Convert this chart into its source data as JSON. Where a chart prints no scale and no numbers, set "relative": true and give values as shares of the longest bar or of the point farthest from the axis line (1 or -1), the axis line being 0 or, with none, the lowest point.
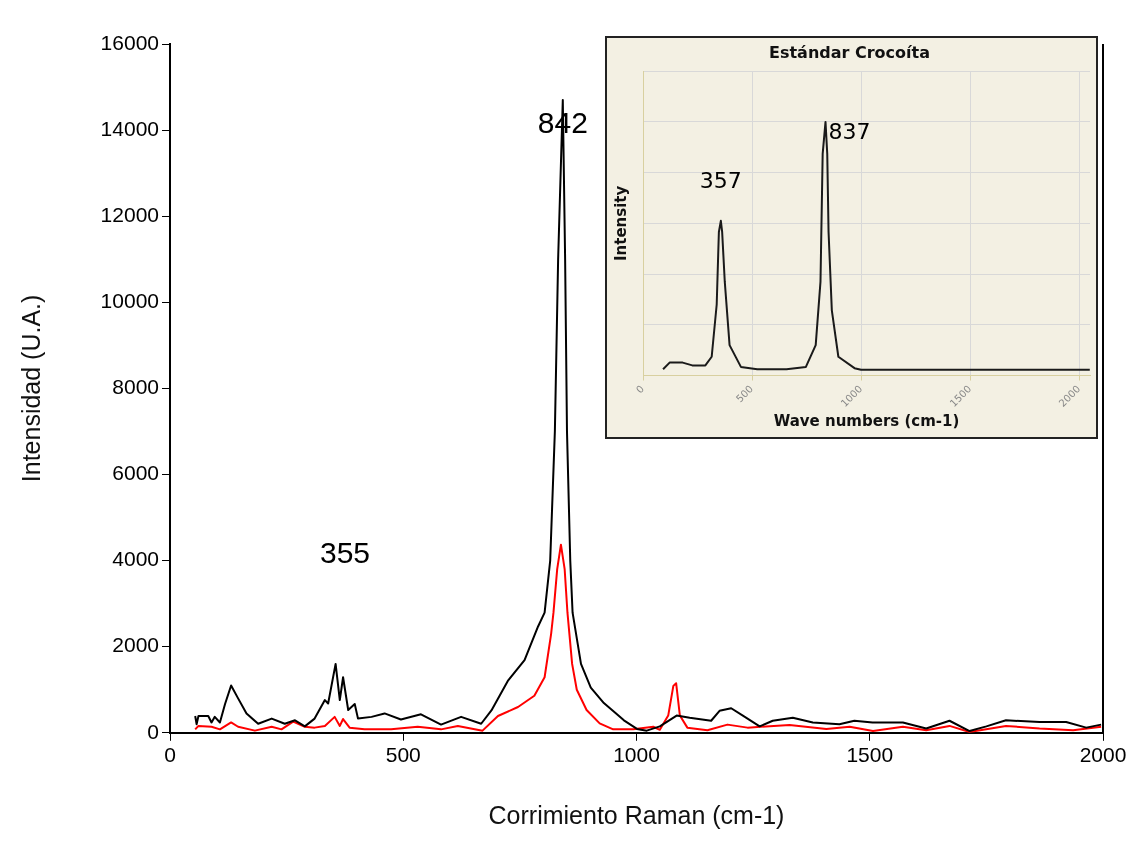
{
  "chart_data": [
    {
      "type": "line",
      "xlabel": "Corrimiento Raman (cm-1)",
      "ylabel": "Intensidad (U.A.)",
      "xlim": [
        0,
        2000
      ],
      "xticks": [
        0,
        500,
        1000,
        1500,
        2000
      ],
      "ylim": [
        0,
        16000
      ],
      "yticks": [
        0,
        2000,
        4000,
        6000,
        8000,
        10000,
        12000,
        14000,
        16000
      ],
      "grid": false,
      "legend": false,
      "marker": "none",
      "line_style": "solid",
      "annotations": [
        {
          "text": "842",
          "x": 842,
          "y": 14700
        },
        "355"
      ],
      "series": [
        {
          "color": "#000000",
          "x": [
            54,
            57,
            61,
            82,
            89,
            96,
            107,
            118,
            131,
            146,
            164,
            189,
            218,
            246,
            268,
            289,
            310,
            332,
            339,
            355,
            364,
            371,
            382,
            396,
            403,
            432,
            460,
            495,
            538,
            581,
            624,
            667,
            689,
            725,
            760,
            789,
            803,
            815,
            825,
            832,
            842,
            847,
            851,
            858,
            863,
            881,
            902,
            930,
            955,
            973,
            1001,
            1022,
            1050,
            1086,
            1114,
            1160,
            1178,
            1203,
            1228,
            1264,
            1292,
            1335,
            1378,
            1435,
            1467,
            1506,
            1571,
            1621,
            1671,
            1714,
            1750,
            1792,
            1864,
            1921,
            1964,
            1996
          ],
          "values": [
            390,
            200,
            390,
            390,
            240,
            370,
            240,
            670,
            1100,
            800,
            450,
            210,
            330,
            210,
            290,
            150,
            330,
            760,
            680,
            1600,
            760,
            1290,
            530,
            670,
            330,
            370,
            450,
            310,
            430,
            190,
            370,
            210,
            520,
            1220,
            1690,
            2470,
            2790,
            4000,
            7000,
            11000,
            14700,
            11000,
            7000,
            4000,
            2790,
            1600,
            1050,
            690,
            460,
            290,
            90,
            50,
            150,
            400,
            350,
            280,
            510,
            570,
            400,
            150,
            280,
            350,
            240,
            200,
            280,
            240,
            240,
            100,
            280,
            40,
            150,
            290,
            250,
            250,
            120,
            190
          ]
        },
        {
          "color": "#ff0000",
          "x": [
            54,
            61,
            89,
            107,
            131,
            146,
            182,
            218,
            239,
            264,
            289,
            310,
            332,
            353,
            364,
            371,
            385,
            417,
            474,
            531,
            581,
            617,
            670,
            703,
            746,
            781,
            803,
            817,
            822,
            830,
            838,
            846,
            852,
            862,
            872,
            893,
            921,
            950,
            993,
            1036,
            1050,
            1068,
            1079,
            1085,
            1093,
            1109,
            1152,
            1195,
            1238,
            1328,
            1407,
            1457,
            1507,
            1571,
            1621,
            1671,
            1714,
            1792,
            1864,
            1936,
            1996
          ],
          "values": [
            80,
            160,
            140,
            80,
            240,
            140,
            50,
            140,
            80,
            260,
            140,
            120,
            160,
            370,
            160,
            320,
            120,
            80,
            80,
            140,
            80,
            160,
            50,
            390,
            600,
            860,
            1290,
            2300,
            2790,
            3800,
            4370,
            3800,
            2790,
            1600,
            1000,
            530,
            220,
            80,
            80,
            140,
            70,
            400,
            1090,
            1150,
            400,
            120,
            60,
            190,
            120,
            180,
            90,
            140,
            40,
            140,
            60,
            160,
            20,
            160,
            100,
            60,
            140
          ]
        }
      ]
    },
    {
      "type": "line",
      "title": "Estándar Crocoíta",
      "xlabel": "Wave numbers (cm-1)",
      "ylabel": "Intensity",
      "relative": true,
      "xlim": [
        0,
        2050
      ],
      "xticks": [
        0,
        500,
        1000,
        1500,
        2000
      ],
      "grid": true,
      "legend": false,
      "marker": "none",
      "line_style": "solid",
      "annotations": [
        {
          "text": "357",
          "x": 357,
          "y": 0.61
        },
        {
          "text": "837",
          "x": 837,
          "y": 1.0
        }
      ],
      "series": [
        {
          "color": "#1a1a1a",
          "x": [
            92,
            122,
            182,
            226,
            286,
            315,
            338,
            348,
            357,
            363,
            375,
            397,
            449,
            524,
            658,
            747,
            792,
            814,
            824,
            837,
            845,
            851,
            866,
            896,
            970,
            1000,
            2049
          ],
          "values": [
            0.025,
            0.051,
            0.051,
            0.04,
            0.04,
            0.074,
            0.28,
            0.566,
            0.61,
            0.566,
            0.37,
            0.12,
            0.034,
            0.025,
            0.025,
            0.034,
            0.12,
            0.37,
            0.874,
            1.0,
            0.874,
            0.566,
            0.257,
            0.074,
            0.029,
            0.023,
            0.023
          ]
        }
      ]
    }
  ]
}
